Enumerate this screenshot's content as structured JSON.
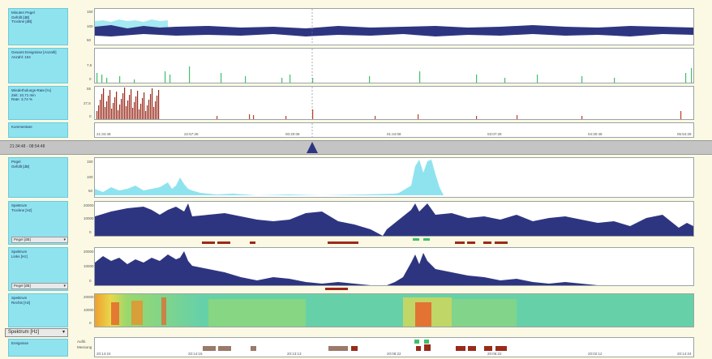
{
  "colors": {
    "background": "#fbf9e3",
    "label_box": "#8fe3ef",
    "navy": "#2e3580",
    "light_blue": "#8fe3ef",
    "brown_red": "#9a2a1a",
    "green": "#3ec06a",
    "event_brown": "#9a7a6a"
  },
  "labels": {
    "top1": [
      "Minuten Pegel",
      "Gefüllt [dB]",
      "Trockne [dB]"
    ],
    "top2": [
      "Gesamt Ereignisse [Anzahl]",
      "Anzahl: 104"
    ],
    "top3": [
      "Wiederholungs-Rate [%]",
      "Zeit: 10,71 min",
      "Rate: 3,74 %"
    ],
    "top4": [
      "Kommentare"
    ],
    "timebar": "21:34:48 - 08:54:48",
    "lower1": [
      "Pegel",
      "Gefüllt [dB]"
    ],
    "lower2": [
      "Spektrum",
      "Trockne [Hz]"
    ],
    "lower3": [
      "Spektrum",
      "Links [Hz]"
    ],
    "lower4": [
      "Spektrum",
      "Rechts [Hz]"
    ],
    "lower5": [
      "Ereignisse"
    ]
  },
  "dropdowns": {
    "d1": "Pegel [dB]",
    "d2": "Pegel [dB]",
    "d3": "Spektrum [Hz]"
  },
  "top_time_ticks": [
    "21:34:48",
    "22:57:28",
    "00:20:08",
    "01:44:08",
    "03:07:28",
    "04:30:48",
    "05:54:28"
  ],
  "bottom_time_ticks": [
    "20:14:24",
    "20:14:15",
    "20:13:13",
    "20:08:22",
    "20:06:22",
    "20:02:12",
    "20:14:24"
  ],
  "y_ticks": {
    "top1": [
      "150",
      "100",
      "50"
    ],
    "top2": [
      "7,5",
      "0"
    ],
    "top3": [
      "55",
      "27,5",
      "0"
    ],
    "lower1": [
      "150",
      "100",
      "50"
    ],
    "lower2": [
      "20000",
      "10000",
      "0"
    ],
    "lower3": [
      "20000",
      "10000",
      "0"
    ],
    "lower4": [
      "20000",
      "10000",
      "0"
    ]
  },
  "event_rows": [
    "Aufkl.",
    "Messung"
  ]
}
